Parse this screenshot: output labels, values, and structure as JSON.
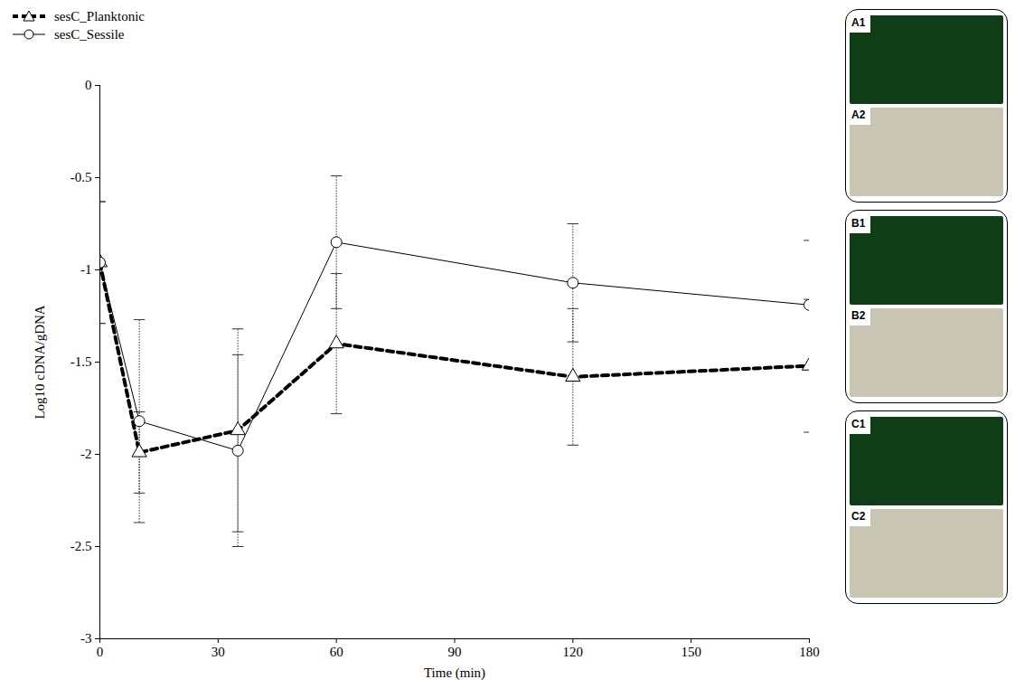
{
  "chart_data": {
    "type": "line",
    "x_label": "Time (min)",
    "y_label": "Log10 cDNA/gDNA",
    "x": [
      0,
      10,
      35,
      60,
      120,
      180
    ],
    "series": [
      {
        "name": "sesC_Planktonic",
        "color": "#000000",
        "marker": "triangle",
        "line_style": "dashed",
        "values": [
          -0.96,
          -1.99,
          -1.87,
          -1.4,
          -1.58,
          -1.52
        ],
        "errors": [
          0.33,
          0.22,
          0.55,
          0.38,
          0.37,
          0.36
        ]
      },
      {
        "name": "sesC_Sessile",
        "color": "#000000",
        "marker": "circle",
        "line_style": "solid",
        "values": [
          -0.96,
          -1.82,
          -1.98,
          -0.85,
          -1.07,
          -1.19
        ],
        "errors": [
          0.33,
          0.55,
          0.52,
          0.36,
          0.32,
          0.35
        ]
      }
    ],
    "xlim": [
      0,
      180
    ],
    "xticks": [
      0,
      30,
      60,
      90,
      120,
      150,
      180
    ],
    "ylim": [
      -3,
      0
    ],
    "yticks": [
      -3,
      -2.5,
      -2,
      -1.5,
      -1,
      -0.5,
      0
    ],
    "legend": "top-left",
    "grid": false,
    "annotations": [
      "A1",
      "A2",
      "B1",
      "B2",
      "C1",
      "C2"
    ]
  }
}
